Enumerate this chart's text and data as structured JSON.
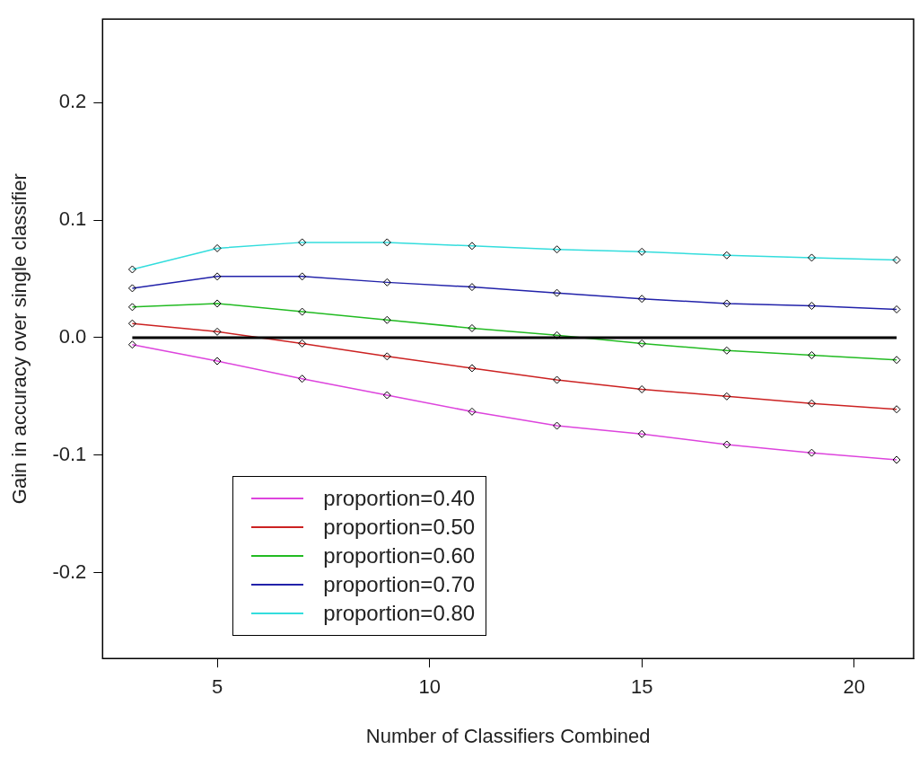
{
  "chart_data": {
    "type": "line",
    "xlabel": "Number of Classifiers Combined",
    "ylabel": "Gain in accuracy over single classifier",
    "x": [
      3,
      5,
      7,
      9,
      11,
      13,
      15,
      17,
      19,
      21
    ],
    "xlim": [
      2.3,
      21.4
    ],
    "xticks": [
      5,
      10,
      15,
      20
    ],
    "ylim": [
      -0.273,
      0.271
    ],
    "yticks": [
      -0.2,
      -0.1,
      {
        "value": 0,
        "label": "0.0"
      },
      0.1,
      0.2
    ],
    "series": [
      {
        "name": "proportion=0.40",
        "color": "#dd44dd",
        "values": [
          -0.006,
          -0.02,
          -0.035,
          -0.049,
          -0.063,
          -0.075,
          -0.082,
          -0.091,
          -0.098,
          -0.104
        ]
      },
      {
        "name": "proportion=0.50",
        "color": "#cc2222",
        "values": [
          0.012,
          0.005,
          -0.005,
          -0.016,
          -0.026,
          -0.036,
          -0.044,
          -0.05,
          -0.056,
          -0.061
        ]
      },
      {
        "name": "proportion=0.60",
        "color": "#22bb22",
        "values": [
          0.026,
          0.029,
          0.022,
          0.015,
          0.008,
          0.002,
          -0.005,
          -0.011,
          -0.015,
          -0.019
        ]
      },
      {
        "name": "proportion=0.70",
        "color": "#2222aa",
        "values": [
          0.042,
          0.052,
          0.052,
          0.047,
          0.043,
          0.038,
          0.033,
          0.029,
          0.027,
          0.024
        ]
      },
      {
        "name": "proportion=0.80",
        "color": "#33dddd",
        "values": [
          0.058,
          0.076,
          0.081,
          0.081,
          0.078,
          0.075,
          0.073,
          0.07,
          0.068,
          0.066
        ]
      }
    ],
    "ref_lines": [
      {
        "axis": "y",
        "value": 0,
        "color": "#000000"
      }
    ],
    "legend": "bottom left",
    "marker": "diamond",
    "line_style": "solid",
    "grid": false
  }
}
